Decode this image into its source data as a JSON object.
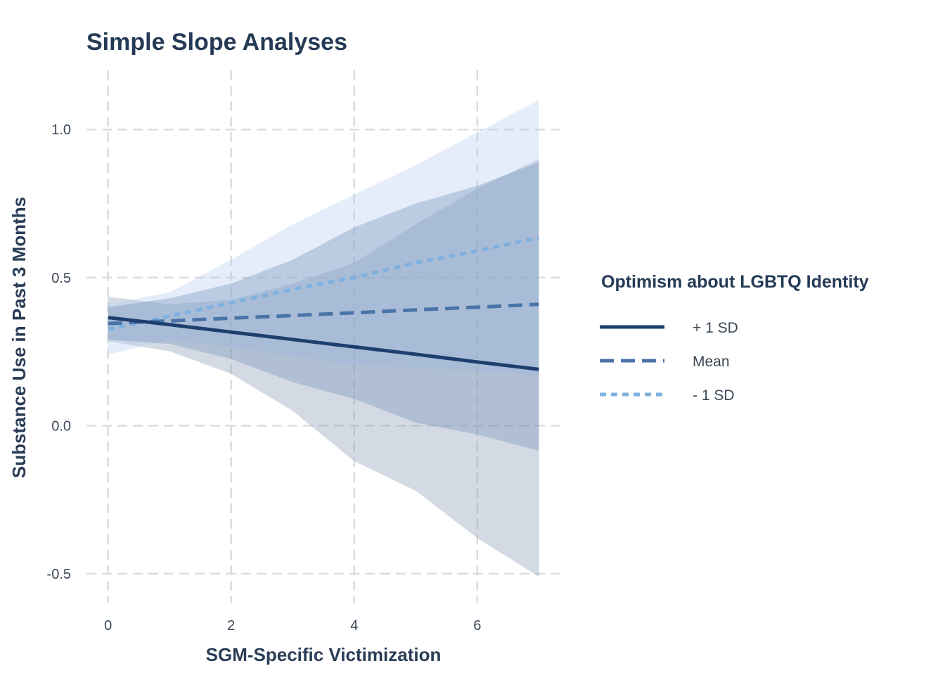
{
  "chart_data": {
    "type": "line",
    "title": "Simple Slope Analyses",
    "xlabel": "SGM-Specific Victimization",
    "ylabel": "Substance Use in Past 3 Months",
    "xlim": [
      -0.35,
      7.35
    ],
    "ylim": [
      -0.6,
      1.2
    ],
    "xticks": [
      0,
      2,
      4,
      6
    ],
    "xtick_labels": [
      "0",
      "2",
      "4",
      "6"
    ],
    "yticks": [
      -0.5,
      0,
      0.5,
      1.0
    ],
    "ytick_labels": [
      "-0.5",
      "0.0",
      "0.5",
      "1.0"
    ],
    "grid": true,
    "legend": {
      "title": "Optimism about LGBTQ Identity",
      "placement": "right"
    },
    "series": [
      {
        "name": "+ 1 SD",
        "color": "#1d3f6e",
        "line_style": "solid",
        "band_color": "#8e9fb6",
        "x": [
          0,
          1,
          2,
          3,
          4,
          5,
          6,
          7
        ],
        "y": [
          0.365,
          0.341,
          0.316,
          0.291,
          0.266,
          0.241,
          0.215,
          0.19
        ],
        "lower": [
          0.285,
          0.251,
          0.175,
          0.05,
          -0.12,
          -0.22,
          -0.38,
          -0.51
        ],
        "upper": [
          0.435,
          0.41,
          0.425,
          0.48,
          0.55,
          0.68,
          0.8,
          0.9
        ]
      },
      {
        "name": "Mean",
        "color": "#4a74a8",
        "line_style": "dashed",
        "band_color": "#7593bd",
        "x": [
          0,
          1,
          2,
          3,
          4,
          5,
          6,
          7
        ],
        "y": [
          0.345,
          0.354,
          0.363,
          0.372,
          0.381,
          0.391,
          0.4,
          0.41
        ],
        "lower": [
          0.29,
          0.276,
          0.225,
          0.147,
          0.09,
          0.01,
          -0.03,
          -0.085
        ],
        "upper": [
          0.4,
          0.43,
          0.48,
          0.56,
          0.67,
          0.75,
          0.81,
          0.89
        ]
      },
      {
        "name": "- 1 SD",
        "color": "#7eb0e0",
        "line_style": "dotted",
        "band_color": "#b7d0ee",
        "x": [
          0,
          1,
          2,
          3,
          4,
          5,
          6,
          7
        ],
        "y": [
          0.325,
          0.37,
          0.415,
          0.46,
          0.5,
          0.55,
          0.59,
          0.635
        ],
        "lower": [
          0.24,
          0.29,
          0.265,
          0.235,
          0.205,
          0.195,
          0.185,
          0.17
        ],
        "upper": [
          0.41,
          0.45,
          0.56,
          0.68,
          0.78,
          0.88,
          0.99,
          1.1
        ]
      }
    ]
  }
}
